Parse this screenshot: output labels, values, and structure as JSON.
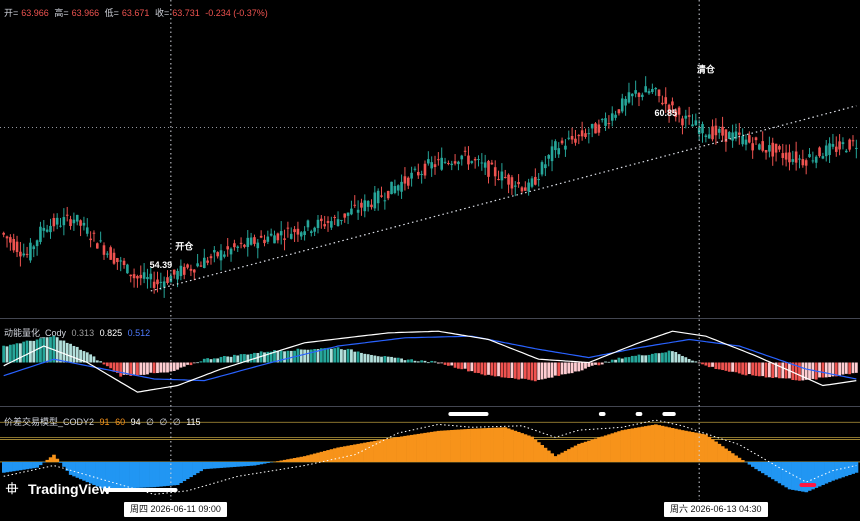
{
  "legend_main": {
    "open_label": "开=",
    "open": "63.966",
    "high_label": "高=",
    "high": "63.966",
    "low_label": "低=",
    "low": "63.671",
    "close_label": "收=",
    "close": "63.731",
    "change": "-0.234 (-0.37%)"
  },
  "legend_ind1": {
    "name": "动能量化_Cody",
    "v1": "0.313",
    "v2": "0.825",
    "v3": "0.512"
  },
  "legend_ind2": {
    "name": "价差交易模型_CODY2",
    "v1": "91",
    "v2": "60",
    "v3": "94",
    "s1": "∅",
    "s2": "∅",
    "s3": "∅",
    "v4": "115"
  },
  "logo_text": "TradingView",
  "crosshair_labels": {
    "left": "周四 2026-06-11   09:00",
    "right": "周六 2026-06-13   04:30"
  },
  "colors": {
    "up": "#26a69a",
    "down": "#ef5350",
    "macd_line": "#ffffff",
    "signal_line": "#2962ff",
    "hist_up_strong": "#26a69a",
    "hist_up_weak": "#b2dfdb",
    "hist_down_strong": "#ef5350",
    "hist_down_weak": "#ffcdd2",
    "orange": "#f7931a",
    "blue": "#2196f3"
  },
  "chart_data": [
    {
      "type": "candlestick",
      "annotations": [
        {
          "text": "开仓",
          "near_index": 54
        },
        {
          "text": "54.39",
          "near_index": 47
        },
        {
          "text": "清仓",
          "near_index": 210
        },
        {
          "text": "60.85",
          "near_index": 198
        }
      ],
      "price_range": [
        52.5,
        67.5
      ],
      "path": [
        [
          0,
          56.6
        ],
        [
          8,
          55.5
        ],
        [
          13,
          56.9
        ],
        [
          22,
          57.3
        ],
        [
          30,
          56.0
        ],
        [
          40,
          54.5
        ],
        [
          47,
          54.2
        ],
        [
          55,
          54.8
        ],
        [
          66,
          55.6
        ],
        [
          80,
          56.4
        ],
        [
          100,
          57.2
        ],
        [
          112,
          58.2
        ],
        [
          128,
          59.8
        ],
        [
          138,
          60.3
        ],
        [
          150,
          59.3
        ],
        [
          158,
          58.7
        ],
        [
          166,
          60.7
        ],
        [
          178,
          61.6
        ],
        [
          190,
          63.3
        ],
        [
          195,
          63.4
        ],
        [
          203,
          62.2
        ],
        [
          210,
          61.5
        ],
        [
          220,
          61.2
        ],
        [
          235,
          60.3
        ],
        [
          240,
          60.1
        ],
        [
          246,
          60.5
        ],
        [
          255,
          60.9
        ]
      ],
      "seed": 7
    },
    {
      "type": "histogram_with_lines",
      "name": "动能量化_Cody",
      "series": [
        {
          "name": "hist",
          "points": [
            [
              0,
              0.5
            ],
            [
              15,
              0.8
            ],
            [
              25,
              0.3
            ],
            [
              35,
              -0.4
            ],
            [
              50,
              -0.3
            ],
            [
              60,
              0.1
            ],
            [
              80,
              0.35
            ],
            [
              100,
              0.45
            ],
            [
              115,
              0.15
            ],
            [
              130,
              0.0
            ],
            [
              145,
              -0.4
            ],
            [
              160,
              -0.55
            ],
            [
              170,
              -0.3
            ],
            [
              185,
              0.15
            ],
            [
              200,
              0.35
            ],
            [
              210,
              -0.1
            ],
            [
              220,
              -0.35
            ],
            [
              240,
              -0.55
            ],
            [
              255,
              -0.3
            ]
          ]
        },
        {
          "name": "fast",
          "points": [
            [
              0,
              -0.1
            ],
            [
              12,
              0.5
            ],
            [
              25,
              0.0
            ],
            [
              40,
              -0.9
            ],
            [
              52,
              -0.7
            ],
            [
              65,
              -0.2
            ],
            [
              90,
              0.6
            ],
            [
              115,
              0.9
            ],
            [
              130,
              0.95
            ],
            [
              145,
              0.7
            ],
            [
              160,
              0.1
            ],
            [
              175,
              0.0
            ],
            [
              190,
              0.6
            ],
            [
              200,
              0.95
            ],
            [
              210,
              0.8
            ],
            [
              225,
              0.2
            ],
            [
              245,
              -0.7
            ],
            [
              255,
              -0.55
            ]
          ]
        },
        {
          "name": "slow",
          "points": [
            [
              0,
              -0.4
            ],
            [
              15,
              0.1
            ],
            [
              30,
              -0.2
            ],
            [
              45,
              -0.5
            ],
            [
              60,
              -0.55
            ],
            [
              80,
              0.0
            ],
            [
              100,
              0.5
            ],
            [
              120,
              0.75
            ],
            [
              140,
              0.8
            ],
            [
              160,
              0.4
            ],
            [
              175,
              0.15
            ],
            [
              190,
              0.45
            ],
            [
              205,
              0.7
            ],
            [
              220,
              0.5
            ],
            [
              240,
              -0.2
            ],
            [
              255,
              -0.5
            ]
          ]
        }
      ],
      "range": [
        -1.2,
        1.2
      ]
    },
    {
      "type": "area",
      "name": "价差交易模型_CODY2",
      "series": [
        {
          "name": "band",
          "points": [
            [
              0,
              45
            ],
            [
              10,
              52
            ],
            [
              15,
              70
            ],
            [
              20,
              42
            ],
            [
              30,
              22
            ],
            [
              45,
              25
            ],
            [
              52,
              28
            ],
            [
              60,
              50
            ],
            [
              75,
              55
            ],
            [
              90,
              68
            ],
            [
              100,
              80
            ],
            [
              112,
              90
            ],
            [
              120,
              96
            ],
            [
              130,
              103
            ],
            [
              140,
              106
            ],
            [
              150,
              108
            ],
            [
              158,
              95
            ],
            [
              165,
              68
            ],
            [
              172,
              85
            ],
            [
              185,
              104
            ],
            [
              195,
              112
            ],
            [
              203,
              104
            ],
            [
              210,
              98
            ],
            [
              218,
              72
            ],
            [
              225,
              50
            ],
            [
              235,
              22
            ],
            [
              240,
              18
            ],
            [
              248,
              34
            ],
            [
              255,
              45
            ]
          ]
        },
        {
          "name": "dots",
          "points": [
            [
              0,
              40
            ],
            [
              15,
              55
            ],
            [
              30,
              35
            ],
            [
              45,
              15
            ],
            [
              55,
              20
            ],
            [
              70,
              40
            ],
            [
              90,
              55
            ],
            [
              105,
              70
            ],
            [
              118,
              100
            ],
            [
              130,
              112
            ],
            [
              140,
              108
            ],
            [
              155,
              110
            ],
            [
              165,
              94
            ],
            [
              172,
              104
            ],
            [
              185,
              108
            ],
            [
              195,
              118
            ],
            [
              203,
              110
            ],
            [
              212,
              96
            ],
            [
              220,
              84
            ],
            [
              232,
              52
            ],
            [
              240,
              32
            ],
            [
              248,
              48
            ],
            [
              255,
              55
            ]
          ]
        }
      ],
      "levels": [
        115,
        94,
        60,
        91
      ],
      "range": [
        10,
        125
      ]
    }
  ]
}
